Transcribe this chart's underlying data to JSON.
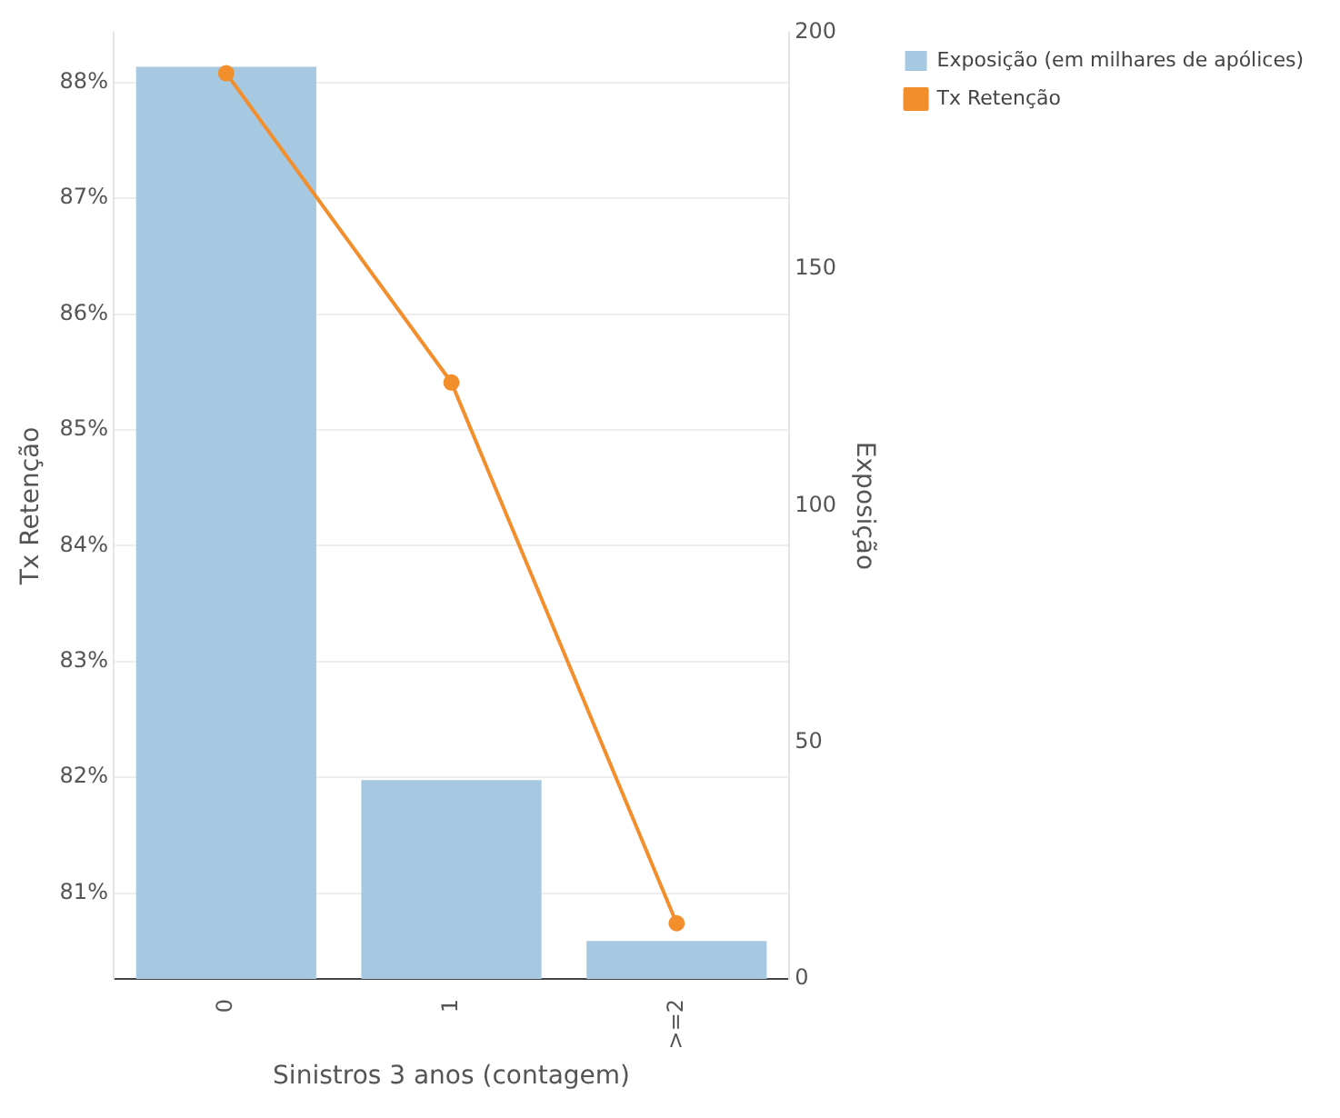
{
  "chart_data": {
    "type": "bar",
    "xlabel": "Sinistros 3 anos (contagem)",
    "ylabel": "Tx Retenção",
    "y2label": "Exposição",
    "categories": [
      "0",
      "1",
      ">=2"
    ],
    "series": [
      {
        "name": "Exposição (em milhares de apólices)",
        "type": "bar",
        "axis": "y2",
        "color": "#a6c8e0",
        "values": [
          192.8,
          42,
          8
        ]
      },
      {
        "name": "Tx Retenção",
        "type": "line",
        "color": "#f28e2b",
        "marker": "circle",
        "values": [
          88.08,
          85.41,
          80.74
        ]
      }
    ],
    "ylim": [
      80.26,
      88.43
    ],
    "yticks": [
      {
        "value": 81,
        "label": "81%"
      },
      {
        "value": 82,
        "label": "82%"
      },
      {
        "value": 83,
        "label": "83%"
      },
      {
        "value": 84,
        "label": "84%"
      },
      {
        "value": 85,
        "label": "85%"
      },
      {
        "value": 86,
        "label": "86%"
      },
      {
        "value": 87,
        "label": "87%"
      },
      {
        "value": 88,
        "label": "88%"
      }
    ],
    "y2lim": [
      0,
      200
    ],
    "y2ticks": [
      0,
      50,
      100,
      150,
      200
    ],
    "grid": "y",
    "legend": "top right"
  }
}
